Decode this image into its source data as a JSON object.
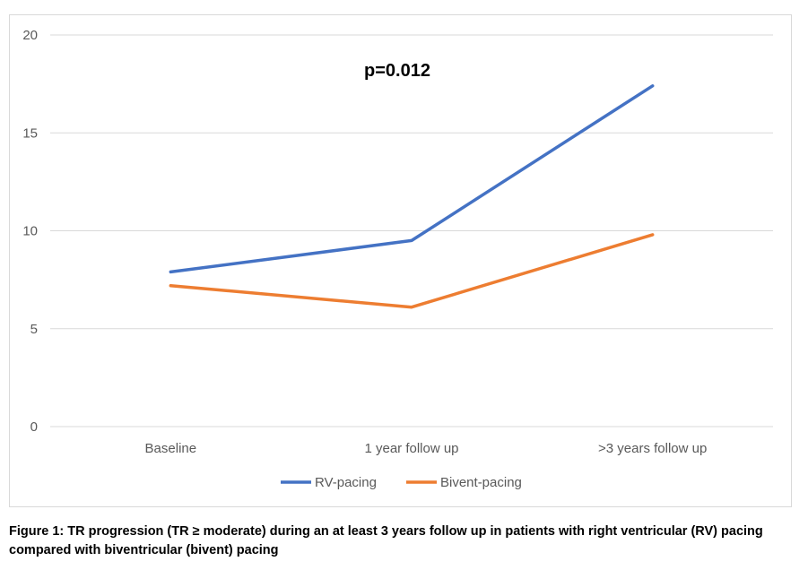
{
  "chart_data": {
    "type": "line",
    "categories": [
      "Baseline",
      "1 year follow up",
      ">3 years follow up"
    ],
    "series": [
      {
        "name": "RV-pacing",
        "values": [
          7.9,
          9.5,
          17.4
        ],
        "color": "#4472C4"
      },
      {
        "name": "Bivent-pacing",
        "values": [
          7.2,
          6.1,
          9.8
        ],
        "color": "#ED7D31"
      }
    ],
    "ylim": [
      0,
      20
    ],
    "yticks": [
      0,
      5,
      10,
      15,
      20
    ],
    "annotation": "p=0.012",
    "grid": true,
    "legend": "bottom-center"
  },
  "caption": "Figure 1: TR progression (TR ≥ moderate) during an at least 3 years follow up in patients with right ventricular (RV) pacing compared with biventricular (bivent) pacing"
}
